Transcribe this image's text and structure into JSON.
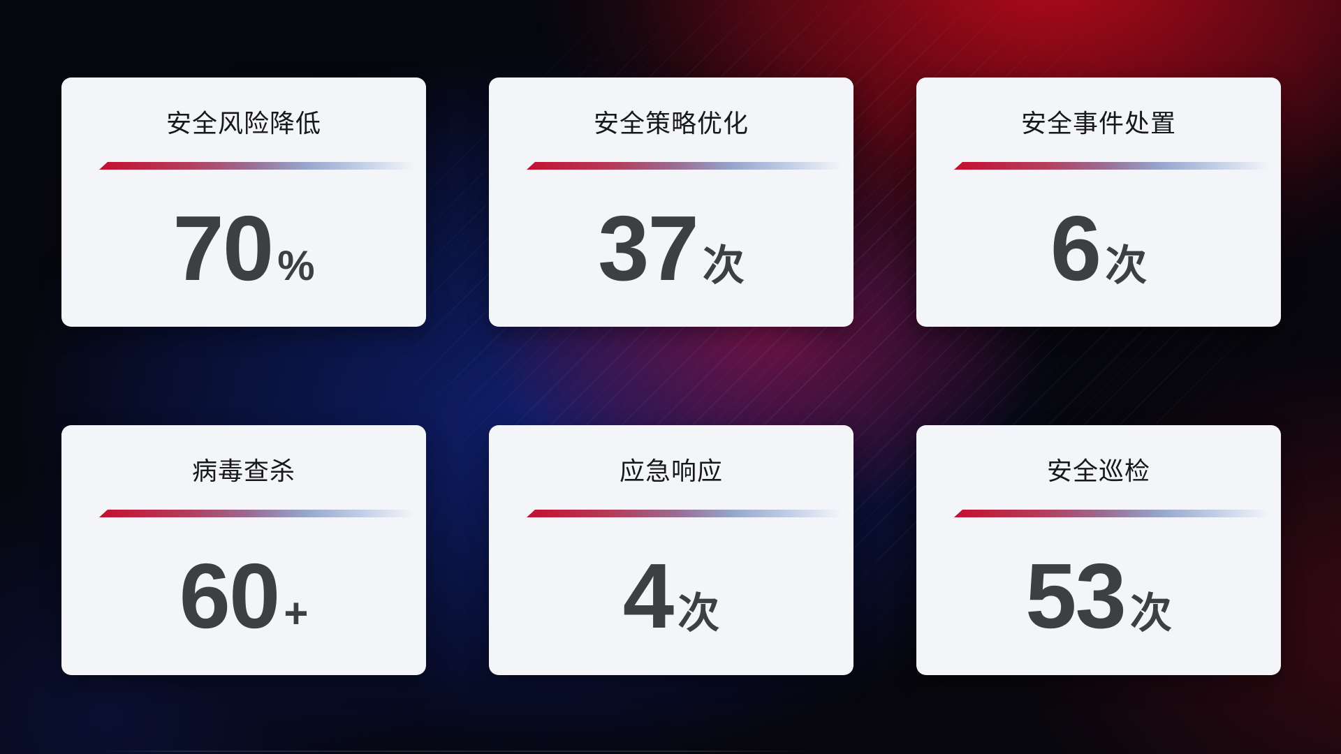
{
  "cards": [
    {
      "title": "安全风险降低",
      "value": "70",
      "unit": "%"
    },
    {
      "title": "安全策略优化",
      "value": "37",
      "unit": "次"
    },
    {
      "title": "安全事件处置",
      "value": "6",
      "unit": "次"
    },
    {
      "title": "病毒查杀",
      "value": "60",
      "unit": "+"
    },
    {
      "title": "应急响应",
      "value": "4",
      "unit": "次"
    },
    {
      "title": "安全巡检",
      "value": "53",
      "unit": "次"
    }
  ],
  "chart_data": {
    "type": "table",
    "categories": [
      "安全风险降低",
      "安全策略优化",
      "安全事件处置",
      "病毒查杀",
      "应急响应",
      "安全巡检"
    ],
    "values": [
      70,
      37,
      6,
      60,
      4,
      53
    ],
    "units": [
      "%",
      "次",
      "次",
      "+",
      "次",
      "次"
    ],
    "title": "",
    "layout": "2 rows x 3 columns of KPI stat cards on dark red/blue gradient background"
  },
  "colors": {
    "card_background": "#f4f5f8",
    "title_text": "#17181a",
    "value_text": "#3e3f43",
    "divider_start": "#c50f30",
    "divider_end": "#c3cfe6",
    "background_blue": "#102176",
    "background_red": "#ba0a1a"
  }
}
